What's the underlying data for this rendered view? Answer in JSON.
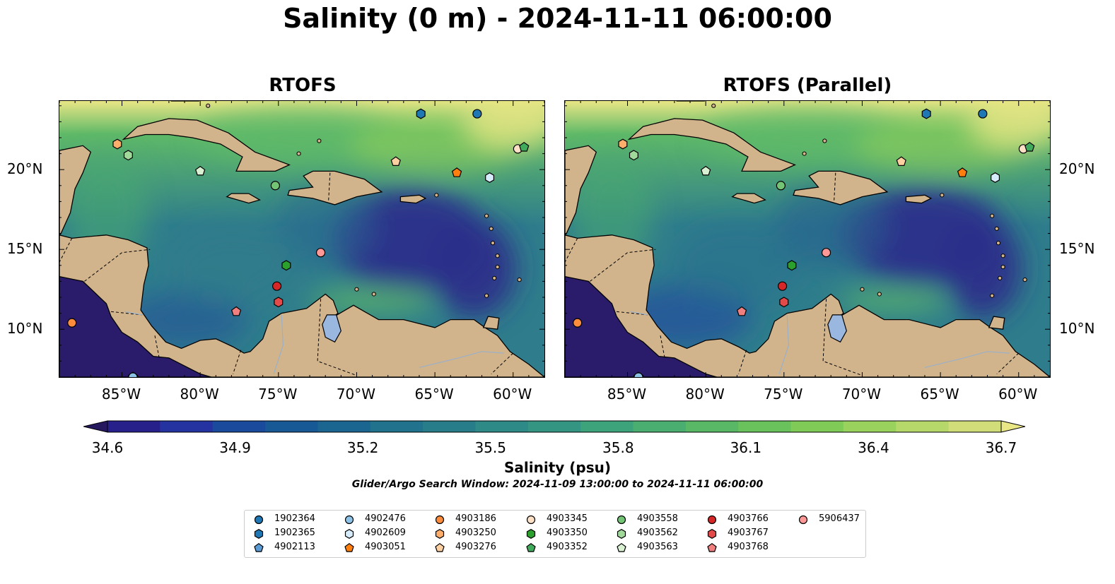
{
  "title": "Salinity (0 m) - 2024-11-11 06:00:00",
  "panels": [
    {
      "title": "RTOFS"
    },
    {
      "title": "RTOFS (Parallel)"
    }
  ],
  "map": {
    "lon_ticks": [
      "85°W",
      "80°W",
      "75°W",
      "70°W",
      "65°W",
      "60°W"
    ],
    "lat_ticks": [
      "20°N",
      "15°N",
      "10°N"
    ],
    "colors": {
      "land": "#d2b48c",
      "lake": "#9ab7e0",
      "deep_ocean": "#2a1b6b",
      "low_salinity": "#2c2f8a",
      "mid_salinity": "#2f7d8c",
      "high_salinity": "#5fb968",
      "very_high_salinity": "#e9e685"
    }
  },
  "colorbar": {
    "ticks": [
      "34.6",
      "34.9",
      "35.2",
      "35.5",
      "35.8",
      "36.1",
      "36.4",
      "36.7"
    ],
    "label": "Salinity (psu)",
    "colors": [
      "#26185f",
      "#28208a",
      "#2433a0",
      "#1a4a9c",
      "#175994",
      "#1b6690",
      "#21728c",
      "#277e8a",
      "#2d8a86",
      "#349682",
      "#3da37b",
      "#4aae71",
      "#58b866",
      "#6ac25c",
      "#80cb58",
      "#9ad25e",
      "#b6d86a",
      "#d1dd78",
      "#e9e685"
    ]
  },
  "search_window": "Glider/Argo Search Window: 2024-11-09 13:00:00 to 2024-11-11 06:00:00",
  "legend": [
    {
      "label": "1902364",
      "shape": "circle",
      "color": "#1f77b4"
    },
    {
      "label": "1902365",
      "shape": "hexagon",
      "color": "#1f77b4"
    },
    {
      "label": "4902113",
      "shape": "pentagon",
      "color": "#5a9bd4"
    },
    {
      "label": "4902476",
      "shape": "circle",
      "color": "#8ec3e8"
    },
    {
      "label": "4902609",
      "shape": "hexagon",
      "color": "#d6ecfb"
    },
    {
      "label": "4903051",
      "shape": "pentagon",
      "color": "#ff7f0e"
    },
    {
      "label": "4903186",
      "shape": "circle",
      "color": "#fd8d3c"
    },
    {
      "label": "4903250",
      "shape": "hexagon",
      "color": "#fdae6b"
    },
    {
      "label": "4903276",
      "shape": "pentagon",
      "color": "#fdd0a2"
    },
    {
      "label": "4903345",
      "shape": "circle",
      "color": "#fde0c5"
    },
    {
      "label": "4903350",
      "shape": "hexagon",
      "color": "#2ca02c"
    },
    {
      "label": "4903352",
      "shape": "pentagon",
      "color": "#41ab5d"
    },
    {
      "label": "4903558",
      "shape": "circle",
      "color": "#74c476"
    },
    {
      "label": "4903562",
      "shape": "hexagon",
      "color": "#a1d99b"
    },
    {
      "label": "4903563",
      "shape": "pentagon",
      "color": "#d9f0d3"
    },
    {
      "label": "4903766",
      "shape": "circle",
      "color": "#d62728"
    },
    {
      "label": "4903767",
      "shape": "hexagon",
      "color": "#e34a4a"
    },
    {
      "label": "4903768",
      "shape": "pentagon",
      "color": "#f08080"
    },
    {
      "label": "5906437",
      "shape": "circle",
      "color": "#ff9896"
    }
  ],
  "observations": [
    {
      "id": "1902364",
      "lon": -62.3,
      "lat": 23.5
    },
    {
      "id": "1902365",
      "lon": -65.9,
      "lat": 23.5
    },
    {
      "id": "4902113",
      "lon": -84.3,
      "lat": 7.0
    },
    {
      "id": "4902476",
      "lon": -84.3,
      "lat": 7.0
    },
    {
      "id": "4902609",
      "lon": -61.5,
      "lat": 19.5
    },
    {
      "id": "4903051",
      "lon": -63.6,
      "lat": 19.8
    },
    {
      "id": "4903186",
      "lon": -88.2,
      "lat": 10.4
    },
    {
      "id": "4903250",
      "lon": -85.3,
      "lat": 21.6
    },
    {
      "id": "4903276",
      "lon": -67.5,
      "lat": 20.5
    },
    {
      "id": "4903345",
      "lon": -59.7,
      "lat": 21.3
    },
    {
      "id": "4903350",
      "lon": -74.5,
      "lat": 14.0
    },
    {
      "id": "4903352",
      "lon": -59.3,
      "lat": 21.4
    },
    {
      "id": "4903558",
      "lon": -75.2,
      "lat": 19.0
    },
    {
      "id": "4903562",
      "lon": -84.6,
      "lat": 20.9
    },
    {
      "id": "4903563",
      "lon": -80.0,
      "lat": 19.9
    },
    {
      "id": "4903766",
      "lon": -75.1,
      "lat": 12.7
    },
    {
      "id": "4903767",
      "lon": -75.0,
      "lat": 11.7
    },
    {
      "id": "4903768",
      "lon": -77.7,
      "lat": 11.1
    },
    {
      "id": "5906437",
      "lon": -72.3,
      "lat": 14.8
    }
  ]
}
